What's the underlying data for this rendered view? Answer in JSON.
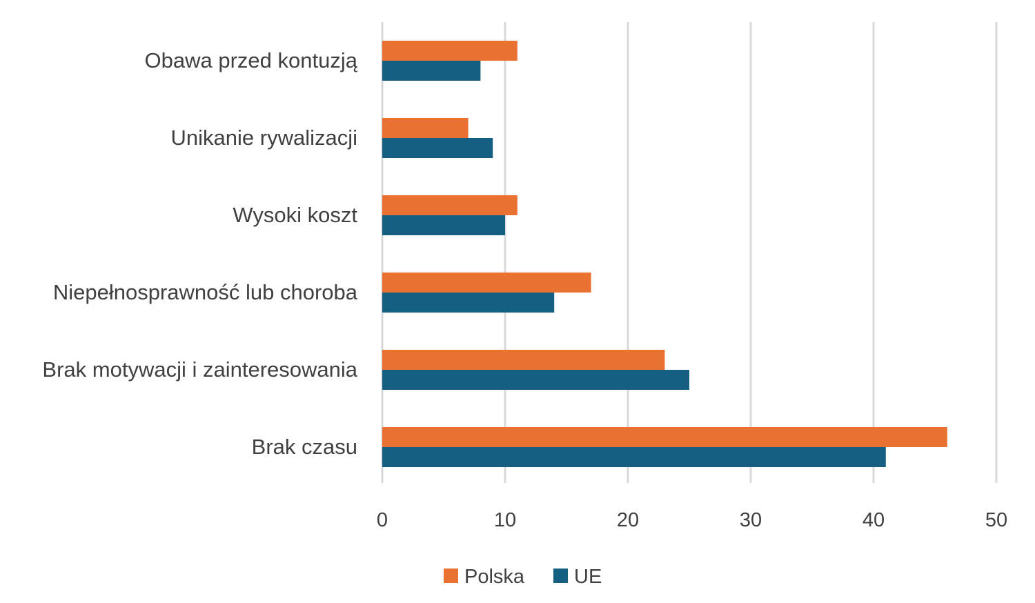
{
  "chart_data": {
    "type": "bar",
    "orientation": "horizontal",
    "title": "",
    "xlabel": "",
    "ylabel": "",
    "categories": [
      "Obawa przed kontuzją",
      "Unikanie rywalizacji",
      "Wysoki koszt",
      "Niepełnosprawność lub choroba",
      "Brak motywacji i zainteresowania",
      "Brak czasu"
    ],
    "series": [
      {
        "name": "Polska",
        "color": "#E97132",
        "values": [
          11,
          7,
          11,
          17,
          23,
          46
        ]
      },
      {
        "name": "UE",
        "color": "#156082",
        "values": [
          8,
          9,
          10,
          14,
          25,
          41
        ]
      }
    ],
    "xlim": [
      0,
      50
    ],
    "xticks": [
      "0",
      "10",
      "20",
      "30",
      "40",
      "50"
    ],
    "grid": true,
    "legend": "bottom"
  }
}
